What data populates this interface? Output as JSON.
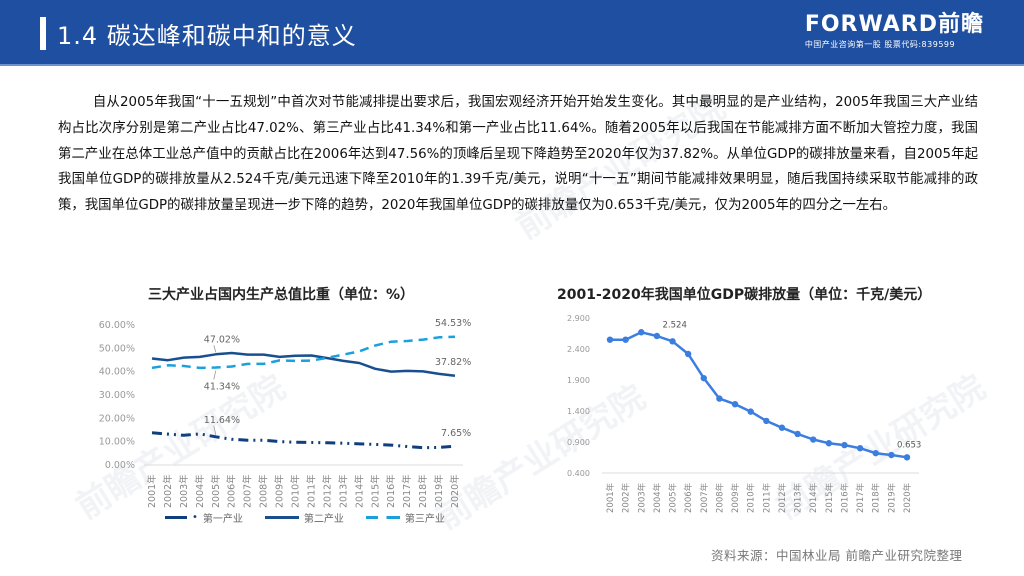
{
  "header": {
    "title": "1.4 碳达峰和碳中和的意义",
    "logo_brand": "FORWARD前瞻",
    "logo_sub": "中国产业咨询第一股  股票代码:839599"
  },
  "body": {
    "paragraph": "自从2005年我国“十一五规划”中首次对节能减排提出要求后，我国宏观经济开始开始发生变化。其中最明显的是产业结构，2005年我国三大产业结构占比次序分别是第二产业占比47.02%、第三产业占比41.34%和第一产业占比11.64%。随着2005年以后我国在节能减排方面不断加大管控力度，我国第二产业在总体工业总产值中的贡献占比在2006年达到47.56%的顶峰后呈现下降趋势至2020年仅为37.82%。从单位GDP的碳排放量来看，自2005年起我国单位GDP的碳排放量从2.524千克/美元迅速下降至2010年的1.39千克/美元，说明“十一五”期间节能减排效果明显，随后我国持续采取节能减排的政策，我国单位GDP的碳排放量呈现进一步下降的趋势，2020年我国单位GDP的碳排放量仅为0.653千克/美元，仅为2005年的四分之一左右。"
  },
  "source": "资料来源：中国林业局 前瞻产业研究院整理",
  "watermark": "前瞻产业研究院",
  "colors": {
    "header_bg": "#1f4fa1",
    "primary_series": "#0f3f7c",
    "secondary_series": "#1a4f8f",
    "tertiary_series": "#1aa0dc",
    "gdp_line": "#3c7ee0"
  },
  "chart_data": [
    {
      "type": "line",
      "title": "三大产业占国内生产总值比重（单位：%）",
      "xlabel": "",
      "ylabel": "",
      "ylim": [
        0,
        60
      ],
      "yticks": [
        "0.00%",
        "10.00%",
        "20.00%",
        "30.00%",
        "40.00%",
        "50.00%",
        "60.00%"
      ],
      "grid": false,
      "legend_position": "bottom",
      "categories": [
        "2001年",
        "2002年",
        "2003年",
        "2004年",
        "2005年",
        "2006年",
        "2007年",
        "2008年",
        "2009年",
        "2010年",
        "2011年",
        "2012年",
        "2013年",
        "2014年",
        "2015年",
        "2016年",
        "2017年",
        "2018年",
        "2019年",
        "2020年"
      ],
      "series": [
        {
          "name": "第一产业",
          "style": "dash-dot",
          "values": [
            13.4,
            12.8,
            12.3,
            12.9,
            11.64,
            10.6,
            10.2,
            10.2,
            9.6,
            9.3,
            9.2,
            9.1,
            8.9,
            8.6,
            8.4,
            8.1,
            7.5,
            7.0,
            7.1,
            7.65
          ]
        },
        {
          "name": "第二产业",
          "style": "solid",
          "values": [
            45.2,
            44.5,
            45.6,
            45.9,
            47.02,
            47.56,
            46.9,
            46.9,
            45.9,
            46.4,
            46.5,
            45.4,
            44.2,
            43.3,
            40.8,
            39.6,
            39.9,
            39.7,
            38.6,
            37.82
          ]
        },
        {
          "name": "第三产业",
          "style": "dashed",
          "values": [
            41.2,
            42.3,
            42.0,
            41.2,
            41.34,
            41.8,
            42.9,
            42.9,
            44.4,
            44.2,
            44.3,
            45.5,
            46.9,
            48.3,
            50.8,
            52.4,
            52.7,
            53.3,
            54.3,
            54.53
          ]
        }
      ],
      "annotations": [
        {
          "label": "47.02%",
          "series": "第二产业",
          "x": "2005年"
        },
        {
          "label": "41.34%",
          "series": "第三产业",
          "x": "2005年"
        },
        {
          "label": "11.64%",
          "series": "第一产业",
          "x": "2005年"
        },
        {
          "label": "54.53%",
          "series": "第三产业",
          "x": "2020年"
        },
        {
          "label": "37.82%",
          "series": "第二产业",
          "x": "2020年"
        },
        {
          "label": "7.65%",
          "series": "第一产业",
          "x": "2020年"
        }
      ]
    },
    {
      "type": "line",
      "title": "2001-2020年我国单位GDP碳排放量（单位：千克/美元）",
      "xlabel": "",
      "ylabel": "",
      "ylim": [
        0.4,
        2.9
      ],
      "yticks": [
        "0.400",
        "0.900",
        "1.400",
        "1.900",
        "2.400",
        "2.900"
      ],
      "grid": false,
      "categories": [
        "2001年",
        "2002年",
        "2003年",
        "2004年",
        "2005年",
        "2006年",
        "2007年",
        "2008年",
        "2009年",
        "2010年",
        "2011年",
        "2012年",
        "2013年",
        "2014年",
        "2015年",
        "2016年",
        "2017年",
        "2018年",
        "2019年",
        "2020年"
      ],
      "series": [
        {
          "name": "单位GDP碳排放量",
          "values": [
            2.55,
            2.55,
            2.67,
            2.61,
            2.524,
            2.32,
            1.93,
            1.6,
            1.51,
            1.39,
            1.24,
            1.13,
            1.03,
            0.94,
            0.88,
            0.85,
            0.8,
            0.72,
            0.69,
            0.653
          ]
        }
      ],
      "annotations": [
        {
          "label": "2.524",
          "x": "2005年"
        },
        {
          "label": "0.653",
          "x": "2020年"
        }
      ]
    }
  ]
}
